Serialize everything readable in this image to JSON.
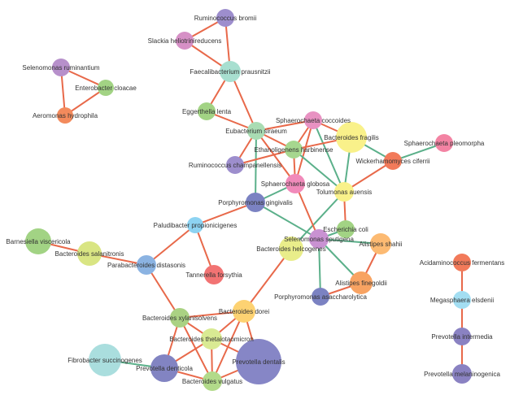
{
  "edge_colors": {
    "positive": "#e8694a",
    "negative": "#5bb08a"
  },
  "nodes": [
    {
      "id": "rbro",
      "label": "Ruminococcus bromii",
      "color": "#9d8ecd"
    },
    {
      "id": "shel",
      "label": "Slackia heliotrinireducens",
      "color": "#d690c6"
    },
    {
      "id": "fpra",
      "label": "Faecalibacterium prausnitzii",
      "color": "#a8dfd0"
    },
    {
      "id": "srum",
      "label": "Selenomonas ruminantium",
      "color": "#b790cb"
    },
    {
      "id": "eclo",
      "label": "Enterobacter cloacae",
      "color": "#a2d384"
    },
    {
      "id": "ahyd",
      "label": "Aeromonas hydrophila",
      "color": "#f38a5c"
    },
    {
      "id": "elen",
      "label": "Eggerthella lenta",
      "color": "#a2d384"
    },
    {
      "id": "esir",
      "label": "Eubacterium siraeum",
      "color": "#a9dcb3"
    },
    {
      "id": "scoc",
      "label": "Sphaerochaeta coccoides",
      "color": "#e892c2"
    },
    {
      "id": "bfra",
      "label": "Bacteroides fragilis",
      "color": "#f9f18a"
    },
    {
      "id": "ehar",
      "label": "Ethanoligenens harbinense",
      "color": "#a6d78f"
    },
    {
      "id": "rcha",
      "label": "Ruminococcus champanellensis",
      "color": "#9d8ecd"
    },
    {
      "id": "sglo",
      "label": "Sphaerochaeta globosa",
      "color": "#f18aba"
    },
    {
      "id": "taue",
      "label": "Tolumonas auensis",
      "color": "#f9f18a"
    },
    {
      "id": "wcif",
      "label": "Wickerhamomyces ciferrii",
      "color": "#f27a5a"
    },
    {
      "id": "sple",
      "label": "Sphaerochaeta pleomorpha",
      "color": "#f383a3"
    },
    {
      "id": "pgin",
      "label": "Porphyromonas gingivalis",
      "color": "#7b82c2"
    },
    {
      "id": "ppro",
      "label": "Paludibacter propionicigenes",
      "color": "#8dd3f2"
    },
    {
      "id": "bvis",
      "label": "Barnesiella viscericola",
      "color": "#a2d384"
    },
    {
      "id": "bsal",
      "label": "Bacteroides salanitronis",
      "color": "#d9e583"
    },
    {
      "id": "pdis",
      "label": "Parabacteroides distasonis",
      "color": "#8bb3e2"
    },
    {
      "id": "tfor",
      "label": "Tannerella forsythia",
      "color": "#f27373"
    },
    {
      "id": "ecol",
      "label": "Escherichia coli",
      "color": "#a2d384"
    },
    {
      "id": "sspu",
      "label": "Selenomonas sputigena",
      "color": "#c992d2"
    },
    {
      "id": "bhel",
      "label": "Bacteroides helcogenes",
      "color": "#e9ed8a"
    },
    {
      "id": "asha",
      "label": "Alistipes shahii",
      "color": "#fcba72"
    },
    {
      "id": "afin",
      "label": "Alistipes finegoldii",
      "color": "#f8a362"
    },
    {
      "id": "pasa",
      "label": "Porphyromonas asaccharolytica",
      "color": "#7b82c2"
    },
    {
      "id": "afer",
      "label": "Acidaminococcus fermentans",
      "color": "#f27a5a"
    },
    {
      "id": "mels",
      "label": "Megasphaera elsdenii",
      "color": "#a3def2"
    },
    {
      "id": "pint",
      "label": "Prevotella intermedia",
      "color": "#8a82c2"
    },
    {
      "id": "pmel",
      "label": "Prevotella melaninogenica",
      "color": "#8a82c2"
    },
    {
      "id": "bdor",
      "label": "Bacteroides dorei",
      "color": "#fdd272"
    },
    {
      "id": "bxyl",
      "label": "Bacteroides xylanisolvens",
      "color": "#aad283"
    },
    {
      "id": "bthe",
      "label": "Bacteroides thetaiotaomicron",
      "color": "#d9ea93"
    },
    {
      "id": "fsuc",
      "label": "Fibrobacter succinogenes",
      "color": "#aadede"
    },
    {
      "id": "pden",
      "label": "Prevotella denticola",
      "color": "#8284c2"
    },
    {
      "id": "pdtl",
      "label": "Prevotella dentalis",
      "color": "#8686c6"
    },
    {
      "id": "bvul",
      "label": "Bacteroides vulgatus",
      "color": "#b2da8a"
    }
  ],
  "edges": [
    [
      "rbro",
      "shel",
      "positive"
    ],
    [
      "rbro",
      "fpra",
      "positive"
    ],
    [
      "shel",
      "fpra",
      "positive"
    ],
    [
      "fpra",
      "elen",
      "positive"
    ],
    [
      "fpra",
      "esir",
      "positive"
    ],
    [
      "srum",
      "eclo",
      "positive"
    ],
    [
      "srum",
      "ahyd",
      "positive"
    ],
    [
      "eclo",
      "ahyd",
      "positive"
    ],
    [
      "elen",
      "esir",
      "positive"
    ],
    [
      "esir",
      "scoc",
      "positive"
    ],
    [
      "esir",
      "rcha",
      "positive"
    ],
    [
      "esir",
      "sglo",
      "positive"
    ],
    [
      "esir",
      "ehar",
      "positive"
    ],
    [
      "esir",
      "pgin",
      "negative"
    ],
    [
      "scoc",
      "ehar",
      "positive"
    ],
    [
      "scoc",
      "sglo",
      "positive"
    ],
    [
      "scoc",
      "bfra",
      "positive"
    ],
    [
      "scoc",
      "taue",
      "negative"
    ],
    [
      "rcha",
      "ehar",
      "positive"
    ],
    [
      "ehar",
      "bfra",
      "positive"
    ],
    [
      "ehar",
      "sglo",
      "positive"
    ],
    [
      "ehar",
      "taue",
      "negative"
    ],
    [
      "bfra",
      "taue",
      "negative"
    ],
    [
      "bfra",
      "wcif",
      "negative"
    ],
    [
      "wcif",
      "sple",
      "negative"
    ],
    [
      "taue",
      "wcif",
      "positive"
    ],
    [
      "taue",
      "ecol",
      "positive"
    ],
    [
      "taue",
      "bhel",
      "negative"
    ],
    [
      "sglo",
      "pgin",
      "negative"
    ],
    [
      "sglo",
      "sspu",
      "positive"
    ],
    [
      "pgin",
      "sspu",
      "negative"
    ],
    [
      "pgin",
      "ppro",
      "positive"
    ],
    [
      "ppro",
      "pdis",
      "positive"
    ],
    [
      "ppro",
      "tfor",
      "positive"
    ],
    [
      "bvis",
      "bsal",
      "positive"
    ],
    [
      "bsal",
      "pdis",
      "positive"
    ],
    [
      "pdis",
      "bxyl",
      "positive"
    ],
    [
      "sspu",
      "ecol",
      "negative"
    ],
    [
      "sspu",
      "asha",
      "negative"
    ],
    [
      "sspu",
      "afin",
      "negative"
    ],
    [
      "sspu",
      "pasa",
      "negative"
    ],
    [
      "bhel",
      "bdor",
      "positive"
    ],
    [
      "asha",
      "afin",
      "positive"
    ],
    [
      "afin",
      "pasa",
      "positive"
    ],
    [
      "afer",
      "mels",
      "positive"
    ],
    [
      "mels",
      "pint",
      "positive"
    ],
    [
      "pint",
      "pmel",
      "positive"
    ],
    [
      "bxyl",
      "bdor",
      "positive"
    ],
    [
      "bxyl",
      "bthe",
      "positive"
    ],
    [
      "bxyl",
      "pden",
      "positive"
    ],
    [
      "bxyl",
      "bvul",
      "positive"
    ],
    [
      "bdor",
      "bthe",
      "positive"
    ],
    [
      "bdor",
      "bvul",
      "positive"
    ],
    [
      "bdor",
      "pdtl",
      "positive"
    ],
    [
      "bthe",
      "pden",
      "positive"
    ],
    [
      "bthe",
      "bvul",
      "positive"
    ],
    [
      "bthe",
      "pdtl",
      "positive"
    ],
    [
      "pden",
      "bvul",
      "positive"
    ],
    [
      "bvul",
      "pdtl",
      "positive"
    ],
    [
      "fsuc",
      "pden",
      "negative"
    ]
  ]
}
